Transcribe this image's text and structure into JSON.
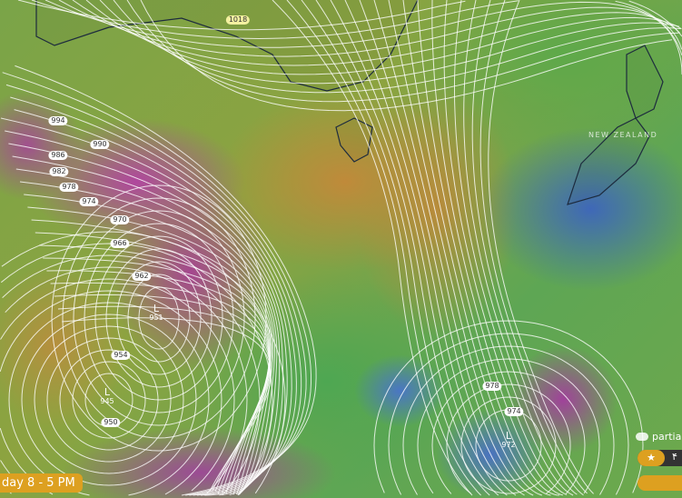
{
  "map": {
    "region_label": "NEW ZEALAND",
    "land_outline_color": "#1a2a40"
  },
  "isobars": [
    {
      "value": "1018",
      "kind": "label"
    },
    {
      "value": "994",
      "kind": "label"
    },
    {
      "value": "990",
      "kind": "label"
    },
    {
      "value": "986",
      "kind": "label"
    },
    {
      "value": "982",
      "kind": "label"
    },
    {
      "value": "978",
      "kind": "label"
    },
    {
      "value": "974",
      "kind": "label"
    },
    {
      "value": "970",
      "kind": "label"
    },
    {
      "value": "966",
      "kind": "label"
    },
    {
      "value": "962",
      "kind": "label"
    },
    {
      "value": "954",
      "kind": "label"
    },
    {
      "value": "950",
      "kind": "label"
    },
    {
      "value": "978",
      "kind": "label"
    },
    {
      "value": "974",
      "kind": "label"
    }
  ],
  "lows": [
    {
      "symbol": "L",
      "value": "951"
    },
    {
      "symbol": "L",
      "value": "945"
    },
    {
      "symbol": "L",
      "value": "972"
    }
  ],
  "timeline": {
    "time_label": "day 8 - 5 PM"
  },
  "controls": {
    "toggle_label": "partial",
    "favorite_icon": "star-icon",
    "favorite_text": "۴",
    "accent": "#dda020"
  }
}
